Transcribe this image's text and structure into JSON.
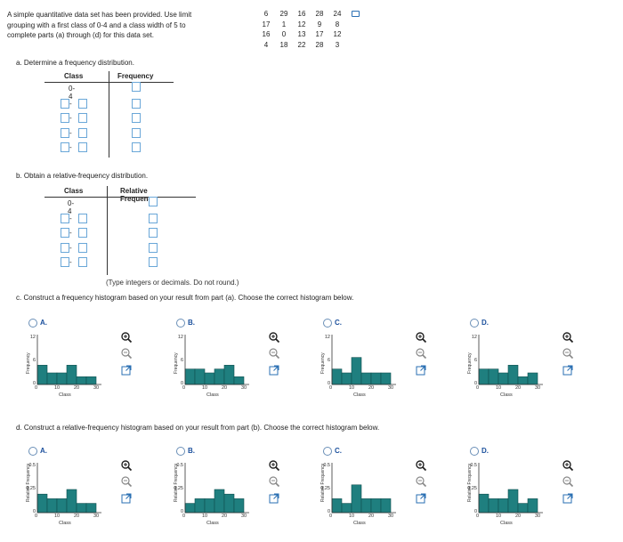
{
  "intro": {
    "lines": [
      "A simple quantitative data set has been provided. Use limit",
      "grouping with a first class of 0-4 and a class width of 5 to",
      "complete parts (a) through (d) for this data set."
    ]
  },
  "dataset": {
    "rows": [
      [
        "6",
        "29",
        "16",
        "28",
        "24"
      ],
      [
        "17",
        "1",
        "12",
        "9",
        "8"
      ],
      [
        "16",
        "0",
        "13",
        "17",
        "12"
      ],
      [
        "4",
        "18",
        "22",
        "28",
        "3"
      ]
    ]
  },
  "part_a": {
    "label": "a. Determine a frequency distribution.",
    "col_class": "Class",
    "col_freq": "Frequency",
    "first_class": "0-4",
    "rows": 5
  },
  "part_b": {
    "label": "b. Obtain a relative-frequency distribution.",
    "col_class": "Class",
    "col_freq": "Relative Frequency",
    "first_class": "0-4",
    "rows": 5,
    "note": "(Type integers or decimals. Do not round.)"
  },
  "part_c": {
    "label": "c. Construct a frequency histogram based on your result from part (a). Choose the correct histogram below.",
    "yaxis_title": "Frequency",
    "xaxis_title": "Class",
    "yticks": [
      "0",
      "6",
      "12"
    ],
    "xticks": [
      "0",
      "10",
      "20",
      "30"
    ]
  },
  "part_d": {
    "label": "d. Construct a relative-frequency histogram based on your result from part (b). Choose the correct histogram below.",
    "yaxis_title": "Relative Frequency",
    "xaxis_title": "Class",
    "yticks": [
      "0",
      "0.25",
      "0.5"
    ],
    "xticks": [
      "0",
      "10",
      "20",
      "30"
    ]
  },
  "options": [
    "A.",
    "B.",
    "C.",
    "D."
  ],
  "colors": {
    "bar": "#1f7f7f",
    "accent": "#1a4f9c",
    "input_border": "#6aa7d8"
  },
  "chart_data": [
    {
      "type": "bar",
      "categories": [
        "0-4",
        "5-9",
        "10-14",
        "15-19",
        "20-24",
        "25-29"
      ],
      "values": [
        5,
        3,
        3,
        5,
        2,
        2
      ],
      "ylim": [
        0,
        12
      ],
      "xlabel": "Class",
      "ylabel": "Frequency"
    },
    {
      "type": "bar",
      "categories": [
        "0-4",
        "5-9",
        "10-14",
        "15-19",
        "20-24",
        "25-29"
      ],
      "values": [
        4,
        4,
        3,
        4,
        5,
        2
      ],
      "ylim": [
        0,
        12
      ],
      "xlabel": "Class",
      "ylabel": "Frequency"
    },
    {
      "type": "bar",
      "categories": [
        "0-4",
        "5-9",
        "10-14",
        "15-19",
        "20-24",
        "25-29"
      ],
      "values": [
        4,
        3,
        7,
        3,
        3,
        3
      ],
      "ylim": [
        0,
        12
      ],
      "xlabel": "Class",
      "ylabel": "Frequency"
    },
    {
      "type": "bar",
      "categories": [
        "0-4",
        "5-9",
        "10-14",
        "15-19",
        "20-24",
        "25-29"
      ],
      "values": [
        4,
        4,
        3,
        5,
        2,
        3
      ],
      "ylim": [
        0,
        12
      ],
      "xlabel": "Class",
      "ylabel": "Frequency"
    },
    {
      "type": "bar",
      "categories": [
        "0-4",
        "5-9",
        "10-14",
        "15-19",
        "20-24",
        "25-29"
      ],
      "values": [
        0.2,
        0.15,
        0.15,
        0.25,
        0.1,
        0.1
      ],
      "ylim": [
        0,
        0.5
      ],
      "xlabel": "Class",
      "ylabel": "Relative Frequency"
    },
    {
      "type": "bar",
      "categories": [
        "0-4",
        "5-9",
        "10-14",
        "15-19",
        "20-24",
        "25-29"
      ],
      "values": [
        0.1,
        0.15,
        0.15,
        0.25,
        0.2,
        0.15
      ],
      "ylim": [
        0,
        0.5
      ],
      "xlabel": "Class",
      "ylabel": "Relative Frequency"
    },
    {
      "type": "bar",
      "categories": [
        "0-4",
        "5-9",
        "10-14",
        "15-19",
        "20-24",
        "25-29"
      ],
      "values": [
        0.15,
        0.1,
        0.3,
        0.15,
        0.15,
        0.15
      ],
      "ylim": [
        0,
        0.5
      ],
      "xlabel": "Class",
      "ylabel": "Relative Frequency"
    },
    {
      "type": "bar",
      "categories": [
        "0-4",
        "5-9",
        "10-14",
        "15-19",
        "20-24",
        "25-29"
      ],
      "values": [
        0.2,
        0.15,
        0.15,
        0.25,
        0.1,
        0.15
      ],
      "ylim": [
        0,
        0.5
      ],
      "xlabel": "Class",
      "ylabel": "Relative Frequency"
    }
  ]
}
